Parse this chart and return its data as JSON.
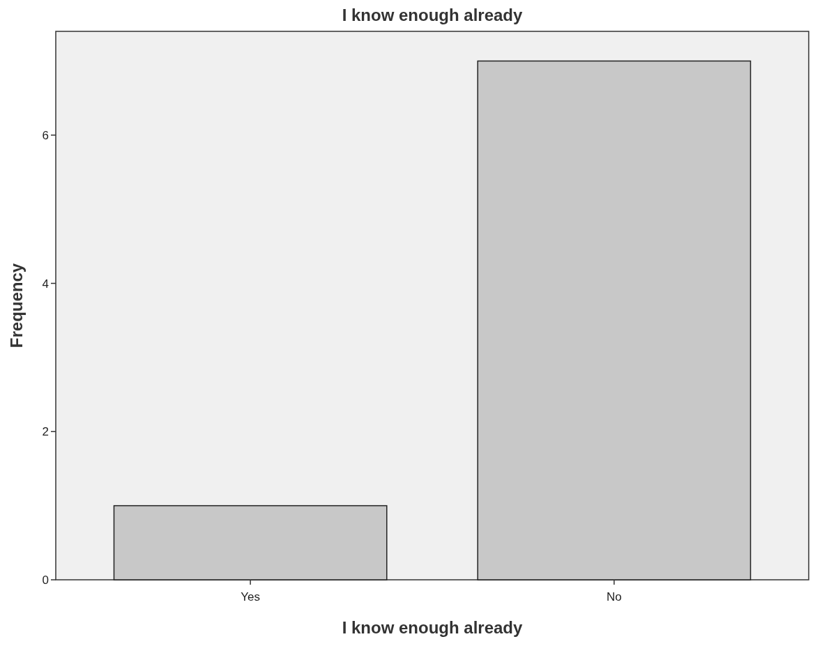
{
  "chart_data": {
    "type": "bar",
    "title": "I know enough already",
    "xlabel": "I know enough already",
    "ylabel": "Frequency",
    "categories": [
      "Yes",
      "No"
    ],
    "values": [
      1,
      7
    ],
    "color": "#c8c8c8",
    "ylim": [
      0,
      7.4
    ],
    "yticks": [
      0,
      2,
      4,
      6
    ],
    "grid": false
  }
}
